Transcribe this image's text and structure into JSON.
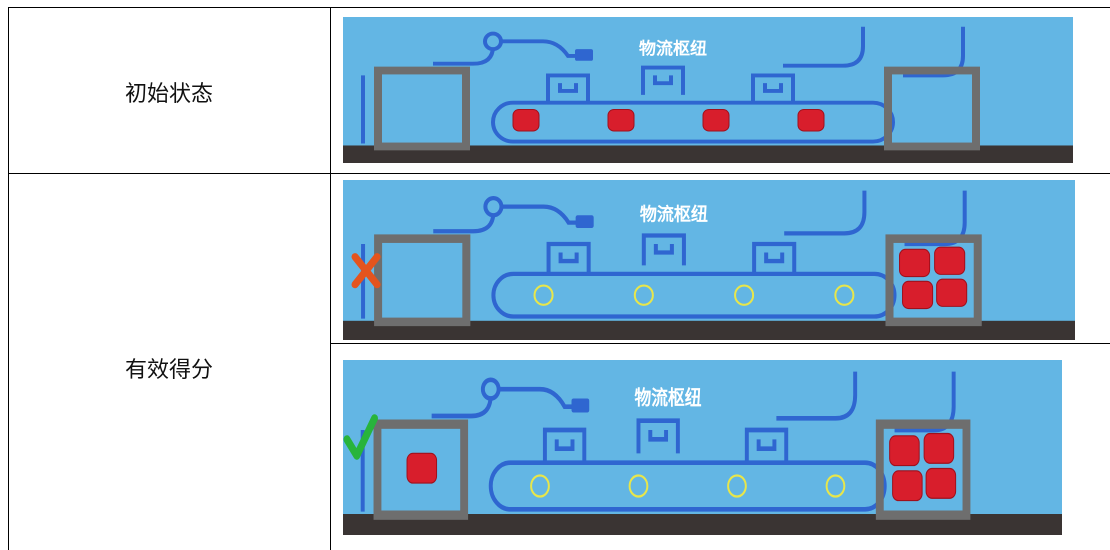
{
  "table": {
    "rows": [
      {
        "label": "初始状态",
        "images": [
          {
            "sign": "物流枢纽"
          }
        ]
      },
      {
        "label": "有效得分",
        "images": [
          {
            "sign": "物流枢纽"
          },
          {
            "sign": "物流枢纽"
          }
        ]
      }
    ]
  }
}
